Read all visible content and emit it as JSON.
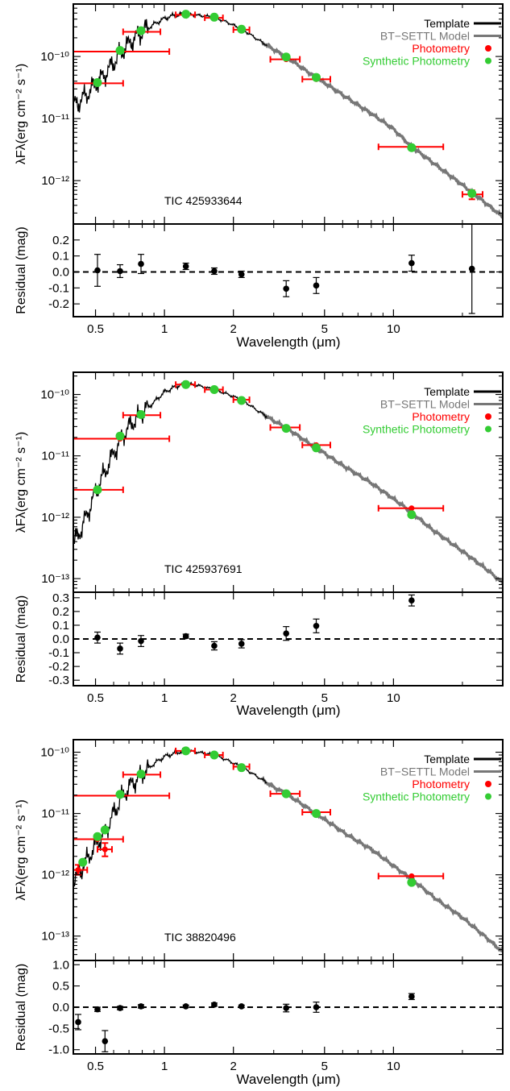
{
  "chart_data": [
    {
      "type": "scatter",
      "name": "TIC 425933644",
      "xlabel": "Wavelength (μm)",
      "ylabel_sed": "λFλ(erg cm⁻² s⁻¹)",
      "ylabel_res": "Residual (mag)",
      "x_scale": "log",
      "y_scale_sed": "log",
      "xlim": [
        0.4,
        30
      ],
      "ylim_sed": [
        2e-13,
        7e-10
      ],
      "ylim_res": [
        -0.28,
        0.3
      ],
      "xticks": [
        0.5,
        1,
        2,
        5,
        10
      ],
      "xtick_labels": [
        "0.5",
        "1",
        "2",
        "5",
        "10"
      ],
      "sed_yticks": [
        1e-12,
        1e-11,
        1e-10
      ],
      "sed_ytick_labels": [
        "10⁻¹²",
        "10⁻¹¹",
        "10⁻¹⁰"
      ],
      "res_yticks": [
        0.2,
        0.1,
        0.0,
        -0.1,
        -0.2
      ],
      "res_ytick_labels": [
        "0.2",
        "0.1",
        "0.0",
        "-0.1",
        "-0.2"
      ],
      "legend": {
        "position": "top-right",
        "entries": [
          {
            "label": "Template",
            "color": "#000000",
            "kind": "line"
          },
          {
            "label": "BT−SETTL Model",
            "color": "#777777",
            "kind": "line"
          },
          {
            "label": "Photometry",
            "color": "#ff0000",
            "kind": "dot"
          },
          {
            "label": "Synthetic Photometry",
            "color": "#33cc33",
            "kind": "dot"
          }
        ]
      },
      "photometry": [
        {
          "x": 0.51,
          "xlo": 0.4,
          "xhi": 0.66,
          "y": 3.7e-11
        },
        {
          "x": 0.64,
          "xlo": 0.4,
          "xhi": 1.05,
          "y": 1.2e-10
        },
        {
          "x": 0.79,
          "xlo": 0.66,
          "xhi": 0.96,
          "y": 2.5e-10
        },
        {
          "x": 1.24,
          "xlo": 1.12,
          "xhi": 1.36,
          "y": 4.7e-10
        },
        {
          "x": 1.65,
          "xlo": 1.5,
          "xhi": 1.8,
          "y": 4.2e-10
        },
        {
          "x": 2.17,
          "xlo": 2.0,
          "xhi": 2.35,
          "y": 2.7e-10
        },
        {
          "x": 3.4,
          "xlo": 2.9,
          "xhi": 3.9,
          "y": 9e-11
        },
        {
          "x": 4.6,
          "xlo": 4.0,
          "xhi": 5.3,
          "y": 4.3e-11
        },
        {
          "x": 12.0,
          "xlo": 8.6,
          "xhi": 16.5,
          "y": 3.5e-12
        },
        {
          "x": 22.0,
          "xlo": 20.0,
          "xhi": 24.5,
          "y": 6e-13,
          "ylo": 5e-13,
          "yhi": 7e-13
        }
      ],
      "synthetic": [
        {
          "x": 0.51,
          "y": 3.8e-11
        },
        {
          "x": 0.64,
          "y": 1.25e-10
        },
        {
          "x": 0.79,
          "y": 2.6e-10
        },
        {
          "x": 1.24,
          "y": 4.8e-10
        },
        {
          "x": 1.65,
          "y": 4.3e-10
        },
        {
          "x": 2.17,
          "y": 2.75e-10
        },
        {
          "x": 3.4,
          "y": 9.8e-11
        },
        {
          "x": 4.6,
          "y": 4.6e-11
        },
        {
          "x": 12.0,
          "y": 3.4e-12
        },
        {
          "x": 22.0,
          "y": 6.2e-13
        }
      ],
      "residuals": [
        {
          "x": 0.51,
          "y": 0.01,
          "err": 0.1
        },
        {
          "x": 0.64,
          "y": 0.005,
          "err": 0.04
        },
        {
          "x": 0.79,
          "y": 0.05,
          "err": 0.06
        },
        {
          "x": 1.24,
          "y": 0.035,
          "err": 0.02
        },
        {
          "x": 1.65,
          "y": 0.005,
          "err": 0.02
        },
        {
          "x": 2.17,
          "y": -0.015,
          "err": 0.02
        },
        {
          "x": 3.4,
          "y": -0.105,
          "err": 0.05
        },
        {
          "x": 4.6,
          "y": -0.085,
          "err": 0.05
        },
        {
          "x": 12.0,
          "y": 0.055,
          "err": 0.05
        },
        {
          "x": 22.0,
          "y": 0.02,
          "err": 0.28
        }
      ],
      "model_anchors": [
        [
          0.38,
          1.5e-11
        ],
        [
          0.42,
          1.8e-11
        ],
        [
          0.46,
          2.5e-11
        ],
        [
          0.5,
          3.6e-11
        ],
        [
          0.55,
          5.2e-11
        ],
        [
          0.6,
          8e-11
        ],
        [
          0.66,
          1.25e-10
        ],
        [
          0.72,
          1.8e-10
        ],
        [
          0.8,
          2.5e-10
        ],
        [
          0.9,
          3.3e-10
        ],
        [
          1.0,
          4.1e-10
        ],
        [
          1.1,
          4.6e-10
        ],
        [
          1.25,
          4.8e-10
        ],
        [
          1.4,
          4.6e-10
        ],
        [
          1.65,
          4.3e-10
        ],
        [
          1.9,
          3.5e-10
        ],
        [
          2.2,
          2.7e-10
        ],
        [
          2.6,
          1.8e-10
        ],
        [
          3.0,
          1.3e-10
        ],
        [
          3.4,
          9.8e-11
        ],
        [
          4.0,
          6.5e-11
        ],
        [
          4.6,
          4.6e-11
        ],
        [
          6.0,
          2.4e-11
        ],
        [
          8.0,
          1.2e-11
        ],
        [
          10.0,
          6.8e-12
        ],
        [
          12.0,
          3.5e-12
        ],
        [
          15.0,
          1.9e-12
        ],
        [
          20.0,
          8.5e-13
        ],
        [
          25.0,
          4.5e-13
        ],
        [
          30.0,
          2.6e-13
        ]
      ],
      "template_max_x": 2.8
    },
    {
      "type": "scatter",
      "name": "TIC 425937691",
      "xlabel": "Wavelength (μm)",
      "ylabel_sed": "λFλ(erg cm⁻² s⁻¹)",
      "ylabel_res": "Residual (mag)",
      "x_scale": "log",
      "y_scale_sed": "log",
      "xlim": [
        0.4,
        30
      ],
      "ylim_sed": [
        6e-14,
        2.3e-10
      ],
      "ylim_res": [
        -0.34,
        0.34
      ],
      "xticks": [
        0.5,
        1,
        2,
        5,
        10
      ],
      "xtick_labels": [
        "0.5",
        "1",
        "2",
        "5",
        "10"
      ],
      "sed_yticks": [
        1e-13,
        1e-12,
        1e-11,
        1e-10
      ],
      "sed_ytick_labels": [
        "10⁻¹³",
        "10⁻¹²",
        "10⁻¹¹",
        "10⁻¹⁰"
      ],
      "res_yticks": [
        0.3,
        0.2,
        0.1,
        0.0,
        -0.1,
        -0.2,
        -0.3
      ],
      "res_ytick_labels": [
        "0.3",
        "0.2",
        "0.1",
        "0.0",
        "-0.1",
        "-0.2",
        "-0.3"
      ],
      "legend": {
        "position": "top-right",
        "entries": [
          {
            "label": "Template",
            "color": "#000000",
            "kind": "line"
          },
          {
            "label": "BT−SETTL Model",
            "color": "#777777",
            "kind": "line"
          },
          {
            "label": "Photometry",
            "color": "#ff0000",
            "kind": "dot"
          },
          {
            "label": "Synthetic Photometry",
            "color": "#33cc33",
            "kind": "dot"
          }
        ]
      },
      "photometry": [
        {
          "x": 0.51,
          "xlo": 0.4,
          "xhi": 0.66,
          "y": 2.8e-12
        },
        {
          "x": 0.64,
          "xlo": 0.4,
          "xhi": 1.05,
          "y": 1.9e-11
        },
        {
          "x": 0.79,
          "xlo": 0.66,
          "xhi": 0.96,
          "y": 4.6e-11
        },
        {
          "x": 1.24,
          "xlo": 1.12,
          "xhi": 1.36,
          "y": 1.45e-10
        },
        {
          "x": 1.65,
          "xlo": 1.5,
          "xhi": 1.8,
          "y": 1.2e-10
        },
        {
          "x": 2.17,
          "xlo": 2.0,
          "xhi": 2.35,
          "y": 8.2e-11
        },
        {
          "x": 3.4,
          "xlo": 2.9,
          "xhi": 3.9,
          "y": 2.9e-11
        },
        {
          "x": 4.6,
          "xlo": 4.0,
          "xhi": 5.3,
          "y": 1.5e-11
        },
        {
          "x": 12.0,
          "xlo": 8.6,
          "xhi": 16.5,
          "y": 1.4e-12
        }
      ],
      "synthetic": [
        {
          "x": 0.51,
          "y": 2.8e-12
        },
        {
          "x": 0.64,
          "y": 2.1e-11
        },
        {
          "x": 0.79,
          "y": 4.7e-11
        },
        {
          "x": 1.24,
          "y": 1.45e-10
        },
        {
          "x": 1.65,
          "y": 1.2e-10
        },
        {
          "x": 2.17,
          "y": 8e-11
        },
        {
          "x": 3.4,
          "y": 2.8e-11
        },
        {
          "x": 4.6,
          "y": 1.35e-11
        },
        {
          "x": 12.0,
          "y": 1.1e-12
        }
      ],
      "residuals": [
        {
          "x": 0.51,
          "y": 0.01,
          "err": 0.04
        },
        {
          "x": 0.64,
          "y": -0.07,
          "err": 0.04
        },
        {
          "x": 0.79,
          "y": -0.015,
          "err": 0.04
        },
        {
          "x": 1.24,
          "y": 0.02,
          "err": 0.015
        },
        {
          "x": 1.65,
          "y": -0.05,
          "err": 0.03
        },
        {
          "x": 2.17,
          "y": -0.035,
          "err": 0.03
        },
        {
          "x": 3.4,
          "y": 0.04,
          "err": 0.05
        },
        {
          "x": 4.6,
          "y": 0.095,
          "err": 0.05
        },
        {
          "x": 12.0,
          "y": 0.28,
          "err": 0.04
        }
      ],
      "model_anchors": [
        [
          0.38,
          3e-13
        ],
        [
          0.42,
          5e-13
        ],
        [
          0.46,
          1.1e-12
        ],
        [
          0.5,
          2.6e-12
        ],
        [
          0.55,
          5.5e-12
        ],
        [
          0.6,
          1.1e-11
        ],
        [
          0.66,
          2.2e-11
        ],
        [
          0.72,
          3.4e-11
        ],
        [
          0.8,
          5e-11
        ],
        [
          0.9,
          7.5e-11
        ],
        [
          1.0,
          1.1e-10
        ],
        [
          1.15,
          1.4e-10
        ],
        [
          1.25,
          1.5e-10
        ],
        [
          1.4,
          1.4e-10
        ],
        [
          1.65,
          1.2e-10
        ],
        [
          1.9,
          1e-10
        ],
        [
          2.2,
          8e-11
        ],
        [
          2.6,
          5.2e-11
        ],
        [
          3.0,
          3.7e-11
        ],
        [
          3.4,
          2.9e-11
        ],
        [
          4.0,
          1.9e-11
        ],
        [
          4.6,
          1.35e-11
        ],
        [
          6.0,
          7e-12
        ],
        [
          8.0,
          3.6e-12
        ],
        [
          10.0,
          2e-12
        ],
        [
          12.0,
          1.2e-12
        ],
        [
          15.0,
          6e-13
        ],
        [
          20.0,
          2.8e-13
        ],
        [
          25.0,
          1.5e-13
        ],
        [
          30.0,
          8.5e-14
        ]
      ],
      "template_max_x": 2.8
    },
    {
      "type": "scatter",
      "name": "TIC 38820496",
      "xlabel": "Wavelength (μm)",
      "ylabel_sed": "λFλ(erg cm⁻² s⁻¹)",
      "ylabel_res": "Residual (mag)",
      "x_scale": "log",
      "y_scale_sed": "log",
      "xlim": [
        0.4,
        30
      ],
      "ylim_sed": [
        4e-14,
        1.6e-10
      ],
      "ylim_res": [
        -1.1,
        1.1
      ],
      "xticks": [
        0.5,
        1,
        2,
        5,
        10
      ],
      "xtick_labels": [
        "0.5",
        "1",
        "2",
        "5",
        "10"
      ],
      "sed_yticks": [
        1e-13,
        1e-12,
        1e-11,
        1e-10
      ],
      "sed_ytick_labels": [
        "10⁻¹³",
        "10⁻¹²",
        "10⁻¹¹",
        "10⁻¹⁰"
      ],
      "res_yticks": [
        1.0,
        0.5,
        0.0,
        -0.5,
        -1.0
      ],
      "res_ytick_labels": [
        "1.0",
        "0.5",
        "0.0",
        "-0.5",
        "-1.0"
      ],
      "legend": {
        "position": "top-right",
        "entries": [
          {
            "label": "Template",
            "color": "#000000",
            "kind": "line"
          },
          {
            "label": "BT−SETTL Model",
            "color": "#777777",
            "kind": "line"
          },
          {
            "label": "Photometry",
            "color": "#ff0000",
            "kind": "dot"
          },
          {
            "label": "Synthetic Photometry",
            "color": "#33cc33",
            "kind": "dot"
          }
        ]
      },
      "photometry": [
        {
          "x": 0.42,
          "xlo": 0.38,
          "xhi": 0.46,
          "y": 1.2e-12,
          "ylo": 1e-12,
          "yhi": 1.45e-12
        },
        {
          "x": 0.51,
          "xlo": 0.4,
          "xhi": 0.66,
          "y": 3.8e-12
        },
        {
          "x": 0.55,
          "xlo": 0.51,
          "xhi": 0.59,
          "y": 2.6e-12,
          "ylo": 2e-12,
          "yhi": 3.3e-12
        },
        {
          "x": 0.64,
          "xlo": 0.4,
          "xhi": 1.05,
          "y": 1.95e-11
        },
        {
          "x": 0.79,
          "xlo": 0.66,
          "xhi": 0.96,
          "y": 4.3e-11
        },
        {
          "x": 1.24,
          "xlo": 1.12,
          "xhi": 1.36,
          "y": 1.05e-10
        },
        {
          "x": 1.65,
          "xlo": 1.5,
          "xhi": 1.8,
          "y": 9e-11
        },
        {
          "x": 2.17,
          "xlo": 2.0,
          "xhi": 2.35,
          "y": 5.8e-11
        },
        {
          "x": 3.4,
          "xlo": 2.9,
          "xhi": 3.9,
          "y": 2.1e-11
        },
        {
          "x": 4.6,
          "xlo": 4.0,
          "xhi": 5.3,
          "y": 1.05e-11
        },
        {
          "x": 12.0,
          "xlo": 8.6,
          "xhi": 16.5,
          "y": 9.5e-13
        }
      ],
      "synthetic": [
        {
          "x": 0.44,
          "y": 1.6e-12
        },
        {
          "x": 0.51,
          "y": 4.2e-12
        },
        {
          "x": 0.55,
          "y": 5.4e-12
        },
        {
          "x": 0.64,
          "y": 2.05e-11
        },
        {
          "x": 0.79,
          "y": 4.4e-11
        },
        {
          "x": 1.24,
          "y": 1.05e-10
        },
        {
          "x": 1.65,
          "y": 9e-11
        },
        {
          "x": 2.17,
          "y": 5.6e-11
        },
        {
          "x": 3.4,
          "y": 2.1e-11
        },
        {
          "x": 4.6,
          "y": 1e-11
        },
        {
          "x": 12.0,
          "y": 7.5e-13
        }
      ],
      "residuals": [
        {
          "x": 0.42,
          "y": -0.35,
          "err": 0.18
        },
        {
          "x": 0.51,
          "y": -0.05,
          "err": 0.05
        },
        {
          "x": 0.55,
          "y": -0.8,
          "err": 0.25
        },
        {
          "x": 0.64,
          "y": -0.02,
          "err": 0.04
        },
        {
          "x": 0.79,
          "y": 0.02,
          "err": 0.04
        },
        {
          "x": 1.24,
          "y": 0.02,
          "err": 0.03
        },
        {
          "x": 1.65,
          "y": 0.06,
          "err": 0.04
        },
        {
          "x": 2.17,
          "y": 0.02,
          "err": 0.03
        },
        {
          "x": 3.4,
          "y": -0.02,
          "err": 0.09
        },
        {
          "x": 4.6,
          "y": 0.0,
          "err": 0.12
        },
        {
          "x": 12.0,
          "y": 0.25,
          "err": 0.07
        }
      ],
      "model_anchors": [
        [
          0.38,
          6e-13
        ],
        [
          0.42,
          1e-12
        ],
        [
          0.46,
          1.8e-12
        ],
        [
          0.5,
          3e-12
        ],
        [
          0.55,
          5e-12
        ],
        [
          0.6,
          1e-11
        ],
        [
          0.66,
          2e-11
        ],
        [
          0.72,
          3e-11
        ],
        [
          0.8,
          4.5e-11
        ],
        [
          0.9,
          6.5e-11
        ],
        [
          1.0,
          8.5e-11
        ],
        [
          1.15,
          1e-10
        ],
        [
          1.25,
          1.07e-10
        ],
        [
          1.4,
          1e-10
        ],
        [
          1.65,
          9e-11
        ],
        [
          1.9,
          7.3e-11
        ],
        [
          2.2,
          5.6e-11
        ],
        [
          2.6,
          3.8e-11
        ],
        [
          3.0,
          2.7e-11
        ],
        [
          3.4,
          2.1e-11
        ],
        [
          4.0,
          1.4e-11
        ],
        [
          4.6,
          1e-11
        ],
        [
          6.0,
          5e-12
        ],
        [
          8.0,
          2.6e-12
        ],
        [
          10.0,
          1.4e-12
        ],
        [
          12.0,
          8.5e-13
        ],
        [
          15.0,
          4.3e-13
        ],
        [
          20.0,
          2e-13
        ],
        [
          25.0,
          1e-13
        ],
        [
          30.0,
          5.5e-14
        ]
      ],
      "template_max_x": 2.8
    }
  ]
}
